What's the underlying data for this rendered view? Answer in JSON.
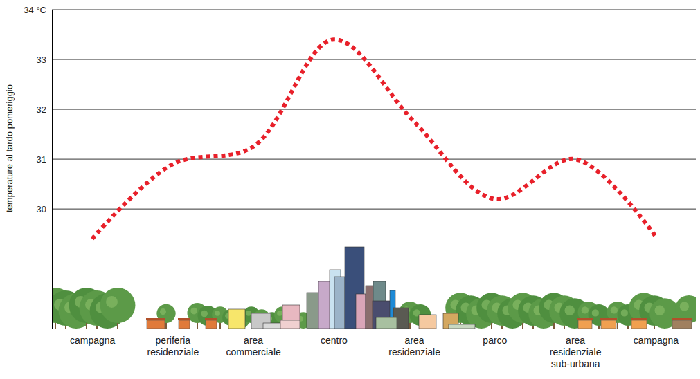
{
  "chart_data": {
    "type": "line",
    "y_label": "temperature al tardo pomeriggio",
    "categories": [
      "campagna",
      "periferia residenziale",
      "area commerciale",
      "centro",
      "area residenziale",
      "parco",
      "area residenziale sub-urbana",
      "campagna"
    ],
    "values": [
      29.4,
      30.9,
      31.25,
      33.4,
      31.75,
      30.2,
      31.0,
      29.45
    ],
    "color": "#e8202a",
    "line_style": "dotted",
    "ylim": [
      27.6,
      34
    ],
    "yticks": [
      30,
      31,
      32,
      33,
      {
        "value": 34,
        "label": "34 °C"
      }
    ],
    "grid": true
  }
}
